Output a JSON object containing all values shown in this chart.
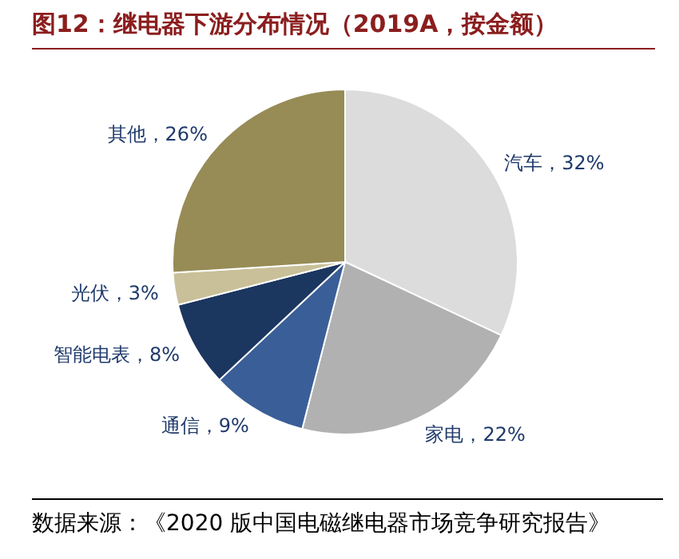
{
  "chart_data": {
    "type": "pie",
    "title": "图12：继电器下游分布情况（2019A，按金额）",
    "categories": [
      "汽车",
      "家电",
      "通信",
      "智能电表",
      "光伏",
      "其他"
    ],
    "values": [
      32,
      22,
      9,
      8,
      3,
      26
    ],
    "value_labels": [
      "32%",
      "22%",
      "9%",
      "8%",
      "3%",
      "26%"
    ],
    "colors": [
      "#dcdcdc",
      "#b1b1b1",
      "#3a5e97",
      "#1b365f",
      "#c9c099",
      "#978b56"
    ],
    "annotations": [
      "数据来源：《2020 版中国电磁继电器市场竞争研究报告》"
    ]
  }
}
